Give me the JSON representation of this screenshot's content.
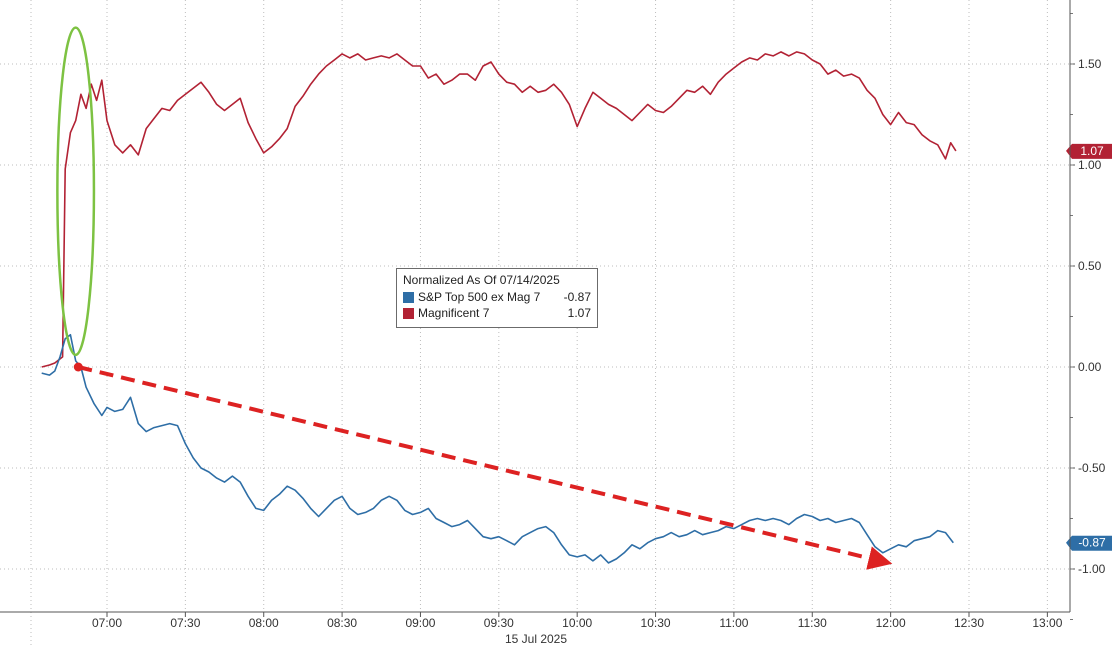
{
  "chart_data": {
    "type": "line",
    "x_axis": {
      "date_label": "15 Jul 2025",
      "ticks": [
        "07:00",
        "07:30",
        "08:00",
        "08:30",
        "09:00",
        "09:30",
        "10:00",
        "10:30",
        "11:00",
        "11:30",
        "12:00",
        "12:30",
        "13:00"
      ],
      "range": [
        "06:35",
        "13:05"
      ]
    },
    "y_axis": {
      "ticks": [
        1.5,
        1.0,
        0.5,
        0.0,
        -0.5,
        -1.0
      ],
      "tick_labels": [
        "1.50",
        "1.00",
        "0.50",
        "0.00",
        "-0.50",
        "-1.00"
      ],
      "range": [
        -1.25,
        1.8
      ],
      "position": "right"
    },
    "grid": true,
    "legend": {
      "placement": "center",
      "title": "Normalized As Of 07/14/2025",
      "entries": [
        {
          "name": "S&P Top 500 ex Mag 7",
          "value": "-0.87",
          "color": "#2e6ea6"
        },
        {
          "name": "Magnificent 7",
          "value": "1.07",
          "color": "#b22234"
        }
      ]
    },
    "series": [
      {
        "name": "Magnificent 7",
        "color": "#b22234",
        "last_value_label": "1.07",
        "points": [
          [
            "06:35",
            0.0
          ],
          [
            "06:38",
            0.01
          ],
          [
            "06:40",
            0.02
          ],
          [
            "06:43",
            0.05
          ],
          [
            "06:44",
            0.98
          ],
          [
            "06:46",
            1.16
          ],
          [
            "06:48",
            1.22
          ],
          [
            "06:50",
            1.35
          ],
          [
            "06:52",
            1.28
          ],
          [
            "06:54",
            1.4
          ],
          [
            "06:56",
            1.32
          ],
          [
            "06:58",
            1.42
          ],
          [
            "07:00",
            1.22
          ],
          [
            "07:03",
            1.1
          ],
          [
            "07:06",
            1.06
          ],
          [
            "07:09",
            1.1
          ],
          [
            "07:12",
            1.05
          ],
          [
            "07:15",
            1.18
          ],
          [
            "07:18",
            1.23
          ],
          [
            "07:21",
            1.28
          ],
          [
            "07:24",
            1.27
          ],
          [
            "07:27",
            1.32
          ],
          [
            "07:30",
            1.35
          ],
          [
            "07:33",
            1.38
          ],
          [
            "07:36",
            1.41
          ],
          [
            "07:39",
            1.36
          ],
          [
            "07:42",
            1.3
          ],
          [
            "07:45",
            1.27
          ],
          [
            "07:48",
            1.3
          ],
          [
            "07:51",
            1.33
          ],
          [
            "07:54",
            1.21
          ],
          [
            "07:57",
            1.13
          ],
          [
            "08:00",
            1.06
          ],
          [
            "08:03",
            1.09
          ],
          [
            "08:06",
            1.13
          ],
          [
            "08:09",
            1.18
          ],
          [
            "08:12",
            1.29
          ],
          [
            "08:15",
            1.34
          ],
          [
            "08:18",
            1.4
          ],
          [
            "08:21",
            1.45
          ],
          [
            "08:24",
            1.49
          ],
          [
            "08:27",
            1.52
          ],
          [
            "08:30",
            1.55
          ],
          [
            "08:33",
            1.53
          ],
          [
            "08:36",
            1.55
          ],
          [
            "08:39",
            1.52
          ],
          [
            "08:42",
            1.53
          ],
          [
            "08:45",
            1.54
          ],
          [
            "08:48",
            1.53
          ],
          [
            "08:51",
            1.55
          ],
          [
            "08:54",
            1.52
          ],
          [
            "08:57",
            1.49
          ],
          [
            "09:00",
            1.49
          ],
          [
            "09:03",
            1.43
          ],
          [
            "09:06",
            1.45
          ],
          [
            "09:09",
            1.4
          ],
          [
            "09:12",
            1.42
          ],
          [
            "09:15",
            1.45
          ],
          [
            "09:18",
            1.45
          ],
          [
            "09:21",
            1.42
          ],
          [
            "09:24",
            1.49
          ],
          [
            "09:27",
            1.51
          ],
          [
            "09:30",
            1.45
          ],
          [
            "09:33",
            1.41
          ],
          [
            "09:36",
            1.4
          ],
          [
            "09:39",
            1.36
          ],
          [
            "09:42",
            1.39
          ],
          [
            "09:45",
            1.36
          ],
          [
            "09:48",
            1.37
          ],
          [
            "09:51",
            1.4
          ],
          [
            "09:54",
            1.36
          ],
          [
            "09:57",
            1.3
          ],
          [
            "10:00",
            1.19
          ],
          [
            "10:03",
            1.28
          ],
          [
            "10:06",
            1.36
          ],
          [
            "10:09",
            1.33
          ],
          [
            "10:12",
            1.3
          ],
          [
            "10:15",
            1.28
          ],
          [
            "10:18",
            1.25
          ],
          [
            "10:21",
            1.22
          ],
          [
            "10:24",
            1.26
          ],
          [
            "10:27",
            1.3
          ],
          [
            "10:30",
            1.27
          ],
          [
            "10:33",
            1.26
          ],
          [
            "10:36",
            1.29
          ],
          [
            "10:39",
            1.33
          ],
          [
            "10:42",
            1.37
          ],
          [
            "10:45",
            1.36
          ],
          [
            "10:48",
            1.39
          ],
          [
            "10:51",
            1.35
          ],
          [
            "10:54",
            1.41
          ],
          [
            "10:57",
            1.45
          ],
          [
            "11:00",
            1.48
          ],
          [
            "11:03",
            1.51
          ],
          [
            "11:06",
            1.53
          ],
          [
            "11:09",
            1.52
          ],
          [
            "11:12",
            1.55
          ],
          [
            "11:15",
            1.54
          ],
          [
            "11:18",
            1.56
          ],
          [
            "11:21",
            1.54
          ],
          [
            "11:24",
            1.56
          ],
          [
            "11:27",
            1.55
          ],
          [
            "11:30",
            1.52
          ],
          [
            "11:33",
            1.5
          ],
          [
            "11:36",
            1.45
          ],
          [
            "11:39",
            1.47
          ],
          [
            "11:42",
            1.44
          ],
          [
            "11:45",
            1.45
          ],
          [
            "11:48",
            1.43
          ],
          [
            "11:51",
            1.37
          ],
          [
            "11:54",
            1.33
          ],
          [
            "11:57",
            1.25
          ],
          [
            "12:00",
            1.2
          ],
          [
            "12:03",
            1.26
          ],
          [
            "12:06",
            1.21
          ],
          [
            "12:09",
            1.2
          ],
          [
            "12:12",
            1.15
          ],
          [
            "12:15",
            1.12
          ],
          [
            "12:18",
            1.1
          ],
          [
            "12:21",
            1.03
          ],
          [
            "12:23",
            1.11
          ],
          [
            "12:25",
            1.07
          ]
        ]
      },
      {
        "name": "S&P Top 500 ex Mag 7",
        "color": "#2e6ea6",
        "last_value_label": "-0.87",
        "points": [
          [
            "06:35",
            -0.03
          ],
          [
            "06:38",
            -0.04
          ],
          [
            "06:40",
            -0.02
          ],
          [
            "06:42",
            0.05
          ],
          [
            "06:44",
            0.14
          ],
          [
            "06:46",
            0.16
          ],
          [
            "06:48",
            0.03
          ],
          [
            "06:50",
            0.0
          ],
          [
            "06:52",
            -0.1
          ],
          [
            "06:55",
            -0.18
          ],
          [
            "06:58",
            -0.24
          ],
          [
            "07:00",
            -0.2
          ],
          [
            "07:03",
            -0.22
          ],
          [
            "07:06",
            -0.21
          ],
          [
            "07:09",
            -0.15
          ],
          [
            "07:12",
            -0.28
          ],
          [
            "07:15",
            -0.32
          ],
          [
            "07:18",
            -0.3
          ],
          [
            "07:21",
            -0.29
          ],
          [
            "07:24",
            -0.28
          ],
          [
            "07:27",
            -0.29
          ],
          [
            "07:30",
            -0.38
          ],
          [
            "07:33",
            -0.45
          ],
          [
            "07:36",
            -0.5
          ],
          [
            "07:39",
            -0.52
          ],
          [
            "07:42",
            -0.55
          ],
          [
            "07:45",
            -0.57
          ],
          [
            "07:48",
            -0.54
          ],
          [
            "07:51",
            -0.57
          ],
          [
            "07:54",
            -0.64
          ],
          [
            "07:57",
            -0.7
          ],
          [
            "08:00",
            -0.71
          ],
          [
            "08:03",
            -0.66
          ],
          [
            "08:06",
            -0.63
          ],
          [
            "08:09",
            -0.59
          ],
          [
            "08:12",
            -0.61
          ],
          [
            "08:15",
            -0.65
          ],
          [
            "08:18",
            -0.7
          ],
          [
            "08:21",
            -0.74
          ],
          [
            "08:24",
            -0.7
          ],
          [
            "08:27",
            -0.66
          ],
          [
            "08:30",
            -0.64
          ],
          [
            "08:33",
            -0.7
          ],
          [
            "08:36",
            -0.73
          ],
          [
            "08:39",
            -0.72
          ],
          [
            "08:42",
            -0.7
          ],
          [
            "08:45",
            -0.66
          ],
          [
            "08:48",
            -0.64
          ],
          [
            "08:51",
            -0.66
          ],
          [
            "08:54",
            -0.71
          ],
          [
            "08:57",
            -0.73
          ],
          [
            "09:00",
            -0.72
          ],
          [
            "09:03",
            -0.7
          ],
          [
            "09:06",
            -0.75
          ],
          [
            "09:09",
            -0.77
          ],
          [
            "09:12",
            -0.79
          ],
          [
            "09:15",
            -0.78
          ],
          [
            "09:18",
            -0.76
          ],
          [
            "09:21",
            -0.8
          ],
          [
            "09:24",
            -0.84
          ],
          [
            "09:27",
            -0.85
          ],
          [
            "09:30",
            -0.84
          ],
          [
            "09:33",
            -0.86
          ],
          [
            "09:36",
            -0.88
          ],
          [
            "09:39",
            -0.84
          ],
          [
            "09:42",
            -0.82
          ],
          [
            "09:45",
            -0.8
          ],
          [
            "09:48",
            -0.79
          ],
          [
            "09:51",
            -0.82
          ],
          [
            "09:54",
            -0.88
          ],
          [
            "09:57",
            -0.93
          ],
          [
            "10:00",
            -0.94
          ],
          [
            "10:03",
            -0.93
          ],
          [
            "10:06",
            -0.96
          ],
          [
            "10:09",
            -0.93
          ],
          [
            "10:12",
            -0.97
          ],
          [
            "10:15",
            -0.95
          ],
          [
            "10:18",
            -0.92
          ],
          [
            "10:21",
            -0.88
          ],
          [
            "10:24",
            -0.9
          ],
          [
            "10:27",
            -0.87
          ],
          [
            "10:30",
            -0.85
          ],
          [
            "10:33",
            -0.84
          ],
          [
            "10:36",
            -0.82
          ],
          [
            "10:39",
            -0.84
          ],
          [
            "10:42",
            -0.83
          ],
          [
            "10:45",
            -0.81
          ],
          [
            "10:48",
            -0.83
          ],
          [
            "10:51",
            -0.82
          ],
          [
            "10:54",
            -0.81
          ],
          [
            "10:57",
            -0.79
          ],
          [
            "11:00",
            -0.8
          ],
          [
            "11:03",
            -0.78
          ],
          [
            "11:06",
            -0.76
          ],
          [
            "11:09",
            -0.75
          ],
          [
            "11:12",
            -0.76
          ],
          [
            "11:15",
            -0.75
          ],
          [
            "11:18",
            -0.76
          ],
          [
            "11:21",
            -0.78
          ],
          [
            "11:24",
            -0.75
          ],
          [
            "11:27",
            -0.73
          ],
          [
            "11:30",
            -0.74
          ],
          [
            "11:33",
            -0.76
          ],
          [
            "11:36",
            -0.75
          ],
          [
            "11:39",
            -0.77
          ],
          [
            "11:42",
            -0.76
          ],
          [
            "11:45",
            -0.75
          ],
          [
            "11:48",
            -0.77
          ],
          [
            "11:51",
            -0.83
          ],
          [
            "11:54",
            -0.89
          ],
          [
            "11:57",
            -0.92
          ],
          [
            "12:00",
            -0.9
          ],
          [
            "12:03",
            -0.88
          ],
          [
            "12:06",
            -0.89
          ],
          [
            "12:09",
            -0.86
          ],
          [
            "12:12",
            -0.85
          ],
          [
            "12:15",
            -0.84
          ],
          [
            "12:18",
            -0.81
          ],
          [
            "12:21",
            -0.82
          ],
          [
            "12:24",
            -0.87
          ]
        ]
      }
    ],
    "annotations": [
      {
        "type": "ellipse",
        "color": "#7dc242",
        "center": [
          "06:48",
          0.87
        ],
        "rx_minutes": 7,
        "ry_value": 0.81
      },
      {
        "type": "dashed-arrow",
        "color": "#dd2222",
        "from": [
          "06:49",
          0.0
        ],
        "to": [
          "12:00",
          -0.98
        ]
      }
    ]
  }
}
